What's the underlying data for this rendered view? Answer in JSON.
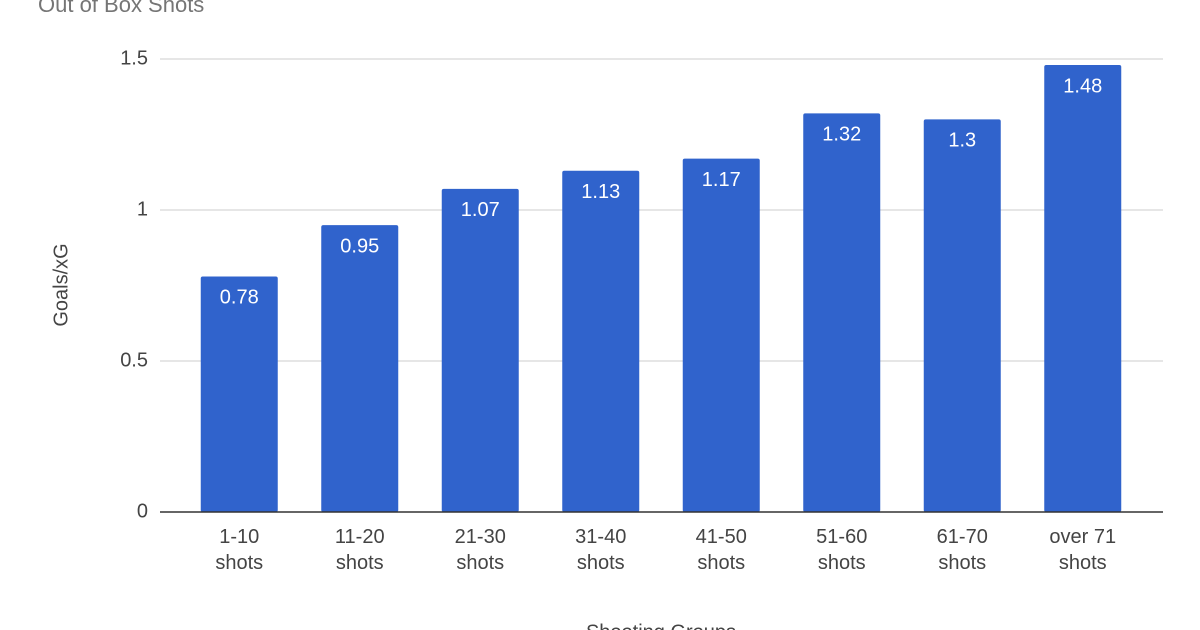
{
  "chart_data": {
    "type": "bar",
    "title": "Out of Box Shots",
    "x_label": "Shooting Groups",
    "y_label": "Goals/xG",
    "categories": [
      "1-10 shots",
      "11-20 shots",
      "21-30 shots",
      "31-40 shots",
      "41-50 shots",
      "51-60 shots",
      "61-70 shots",
      "over 71 shots"
    ],
    "values": [
      0.78,
      0.95,
      1.07,
      1.13,
      1.17,
      1.32,
      1.3,
      1.48
    ],
    "color": "#3063cc",
    "ylim": [
      0,
      1.5
    ],
    "yticks": [
      0,
      0.5,
      1,
      1.5
    ],
    "grid": true
  }
}
